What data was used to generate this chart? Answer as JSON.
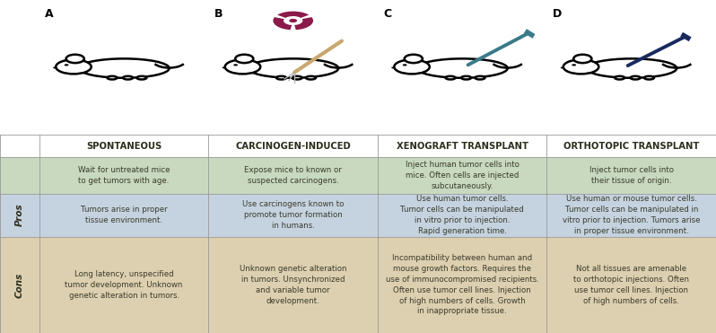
{
  "col_labels": [
    "SPONTANEOUS",
    "CARCINOGEN-INDUCED",
    "XENOGRAFT TRANSPLANT",
    "ORTHOTOPIC TRANSPLANT"
  ],
  "col_letters": [
    "A",
    "B",
    "C",
    "D"
  ],
  "row_labels": [
    "Pros",
    "Cons"
  ],
  "row_bg_colors": [
    "#c8d9c0",
    "#c5d3e0",
    "#ddd0b0"
  ],
  "cells": [
    [
      "Wait for untreated mice\nto get tumors with age.",
      "Expose mice to known or\nsuspected carcinogens.",
      "Inject human tumor cells into\nmice. Often cells are injected\nsubcutaneously.",
      "Inject tumor cells into\ntheir tissue of origin."
    ],
    [
      "Tumors arise in proper\ntissue environment.",
      "Use carcinogens known to\npromote tumor formation\nin humans.",
      "Use human tumor cells.\nTumor cells can be manipulated\nin vitro prior to injection.\nRapid generation time.",
      "Use human or mouse tumor cells.\nTumor cells can be manipulated in\nvitro prior to injection. Tumors arise\nin proper tissue environment."
    ],
    [
      "Long latency, unspecified\ntumor development. Unknown\ngenetic alteration in tumors.",
      "Unknown genetic alteration\nin tumors. Unsynchronized\nand variable tumor\ndevelopment.",
      "Incompatibility between human and\nmouse growth factors. Requires the\nuse of immunocompromised recipients.\nOften use tumor cell lines. Injection\nof high numbers of cells. Growth\nin inappropriate tissue.",
      "Not all tissues are amenable\nto orthotopic injections. Often\nuse tumor cell lines. Injection\nof high numbers of cells."
    ]
  ],
  "fig_width": 7.98,
  "fig_height": 3.71,
  "dpi": 100,
  "text_color": "#3a3a2a",
  "header_text_color": "#2e2e1e",
  "row_label_color": "#2e2e1e",
  "font_size": 6.2,
  "header_font_size": 7.2,
  "row_label_font_size": 7.5,
  "line_color": "#999999",
  "radiation_color": "#8b1a4a",
  "stick_color": "#c8a870",
  "syringe_c_color": "#3a7a8a",
  "syringe_d_color": "#1a2a5e"
}
